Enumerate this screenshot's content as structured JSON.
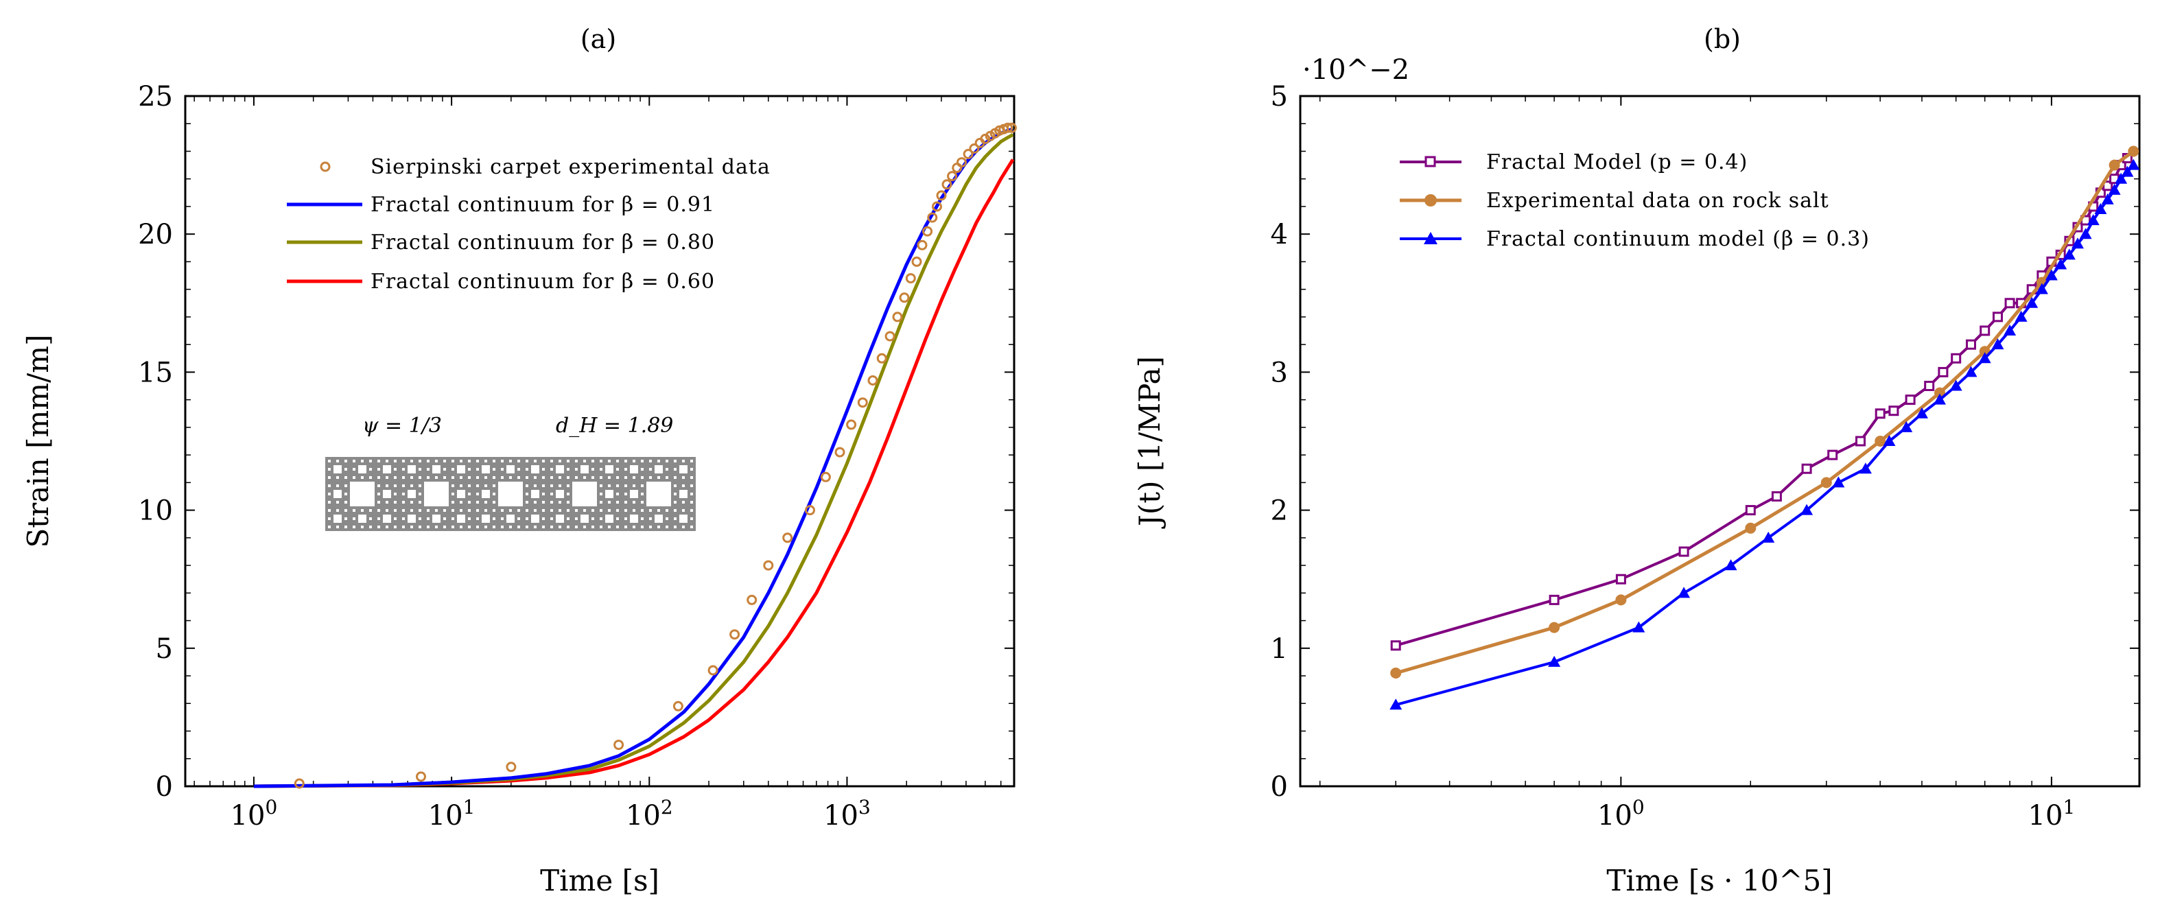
{
  "chart_data": [
    {
      "type": "line",
      "title": "(a)",
      "xlabel": "Time  [s]",
      "ylabel": "Strain  [mm/m]",
      "xscale": "log",
      "xlim": [
        0.45,
        7000
      ],
      "ylim": [
        0,
        25
      ],
      "grid": false,
      "legend_position": "top-left",
      "x_ticks": [
        {
          "value": 1,
          "label_base": "10",
          "label_exp": "0"
        },
        {
          "value": 10,
          "label_base": "10",
          "label_exp": "1"
        },
        {
          "value": 100,
          "label_base": "10",
          "label_exp": "2"
        },
        {
          "value": 1000,
          "label_base": "10",
          "label_exp": "3"
        }
      ],
      "y_ticks": [
        {
          "value": 0,
          "label": "0"
        },
        {
          "value": 5,
          "label": "5"
        },
        {
          "value": 10,
          "label": "10"
        },
        {
          "value": 15,
          "label": "15"
        },
        {
          "value": 20,
          "label": "20"
        },
        {
          "value": 25,
          "label": "25"
        }
      ],
      "inset": {
        "psi_label": "ψ = 1/3",
        "dh_label": "d_H = 1.89"
      },
      "series": [
        {
          "name": "Sierpinski carpet experimental data",
          "style": "scatter-open-circle",
          "color": "#c8823a",
          "x": [
            1.7,
            7,
            20,
            70,
            140,
            210,
            270,
            330,
            400,
            500,
            650,
            780,
            920,
            1050,
            1200,
            1350,
            1500,
            1650,
            1800,
            1950,
            2100,
            2250,
            2400,
            2550,
            2700,
            2850,
            3000,
            3200,
            3400,
            3600,
            3800,
            4100,
            4400,
            4700,
            5000,
            5300,
            5600,
            5900,
            6200,
            6500,
            6800
          ],
          "y": [
            0.1,
            0.35,
            0.7,
            1.5,
            2.9,
            4.2,
            5.5,
            6.75,
            8.0,
            9.0,
            10.0,
            11.2,
            12.1,
            13.1,
            13.9,
            14.7,
            15.5,
            16.3,
            17.0,
            17.7,
            18.4,
            19.0,
            19.6,
            20.1,
            20.6,
            21.0,
            21.4,
            21.8,
            22.1,
            22.4,
            22.6,
            22.9,
            23.1,
            23.3,
            23.45,
            23.55,
            23.65,
            23.75,
            23.8,
            23.85,
            23.85
          ]
        },
        {
          "name": "Fractal continuum for β = 0.91",
          "style": "line",
          "color": "#0000ff",
          "x": [
            1,
            5,
            10,
            20,
            30,
            50,
            70,
            100,
            150,
            200,
            300,
            400,
            500,
            700,
            1000,
            1300,
            1600,
            2000,
            2500,
            3000,
            3500,
            4000,
            4500,
            5000,
            5500,
            6000,
            6500,
            6900
          ],
          "y": [
            0.0,
            0.05,
            0.15,
            0.3,
            0.45,
            0.75,
            1.1,
            1.7,
            2.7,
            3.7,
            5.4,
            7.0,
            8.4,
            10.8,
            13.6,
            15.7,
            17.3,
            18.9,
            20.3,
            21.3,
            22.0,
            22.6,
            23.0,
            23.3,
            23.5,
            23.65,
            23.75,
            23.8
          ]
        },
        {
          "name": "Fractal continuum for β = 0.80",
          "style": "line",
          "color": "#8a8a00",
          "x": [
            1,
            5,
            10,
            20,
            30,
            50,
            70,
            100,
            150,
            200,
            300,
            400,
            500,
            700,
            1000,
            1300,
            1600,
            2000,
            2500,
            3000,
            3500,
            4000,
            4500,
            5000,
            5500,
            6000,
            6500,
            6900
          ],
          "y": [
            0.0,
            0.04,
            0.12,
            0.25,
            0.38,
            0.62,
            0.95,
            1.45,
            2.3,
            3.1,
            4.5,
            5.8,
            7.0,
            9.1,
            11.7,
            13.8,
            15.5,
            17.3,
            18.9,
            20.1,
            21.0,
            21.8,
            22.4,
            22.8,
            23.1,
            23.35,
            23.5,
            23.6
          ]
        },
        {
          "name": "Fractal continuum for β = 0.60",
          "style": "line",
          "color": "#ff0000",
          "x": [
            1,
            5,
            10,
            20,
            30,
            50,
            70,
            100,
            150,
            200,
            300,
            400,
            500,
            700,
            1000,
            1300,
            1600,
            2000,
            2500,
            3000,
            3500,
            4000,
            4500,
            5000,
            5500,
            6000,
            6500,
            6900
          ],
          "y": [
            0.0,
            0.03,
            0.1,
            0.2,
            0.3,
            0.5,
            0.75,
            1.15,
            1.8,
            2.4,
            3.5,
            4.5,
            5.4,
            7.0,
            9.2,
            11.0,
            12.6,
            14.4,
            16.2,
            17.6,
            18.7,
            19.6,
            20.4,
            21.0,
            21.5,
            22.0,
            22.4,
            22.7
          ]
        }
      ]
    },
    {
      "type": "line",
      "title": "(b)",
      "xlabel": "Time  [s · 10^5]",
      "ylabel": "J(t)    [1/MPa]",
      "xscale": "log",
      "xlim": [
        0.18,
        16
      ],
      "ylim": [
        0,
        5
      ],
      "y_multiplier": "·10^−2",
      "grid": false,
      "legend_position": "top-left",
      "x_ticks": [
        {
          "value": 1,
          "label_base": "10",
          "label_exp": "0"
        },
        {
          "value": 10,
          "label_base": "10",
          "label_exp": "1"
        }
      ],
      "y_ticks": [
        {
          "value": 0,
          "label": "0"
        },
        {
          "value": 1,
          "label": "1"
        },
        {
          "value": 2,
          "label": "2"
        },
        {
          "value": 3,
          "label": "3"
        },
        {
          "value": 4,
          "label": "4"
        },
        {
          "value": 5,
          "label": "5"
        }
      ],
      "series": [
        {
          "name": "Fractal Model (p = 0.4)",
          "marker": "square",
          "color": "#800080",
          "x": [
            0.3,
            0.7,
            1.0,
            1.4,
            2.0,
            2.3,
            2.7,
            3.1,
            3.6,
            4.0,
            4.3,
            4.7,
            5.2,
            5.6,
            6.0,
            6.5,
            7.0,
            7.5,
            8.0,
            8.5,
            9.0,
            9.5,
            10.0,
            10.5,
            11.0,
            11.5,
            12.0,
            12.5,
            13.0,
            13.5,
            14.0,
            14.5,
            15.0
          ],
          "y": [
            1.02,
            1.35,
            1.5,
            1.7,
            2.0,
            2.1,
            2.3,
            2.4,
            2.5,
            2.7,
            2.72,
            2.8,
            2.9,
            3.0,
            3.1,
            3.2,
            3.3,
            3.4,
            3.5,
            3.5,
            3.6,
            3.7,
            3.8,
            3.85,
            3.95,
            4.05,
            4.1,
            4.2,
            4.3,
            4.35,
            4.4,
            4.5,
            4.55
          ]
        },
        {
          "name": "Experimental data on rock salt",
          "marker": "circle",
          "color": "#c8823a",
          "x": [
            0.3,
            0.7,
            1.0,
            2.0,
            3.0,
            4.0,
            5.5,
            7.0,
            9.5,
            14.0,
            15.5
          ],
          "y": [
            0.82,
            1.15,
            1.35,
            1.87,
            2.2,
            2.5,
            2.85,
            3.15,
            3.65,
            4.5,
            4.6
          ]
        },
        {
          "name": "Fractal continuum model (β = 0.3)",
          "marker": "triangle",
          "color": "#0000ff",
          "x": [
            0.3,
            0.7,
            1.1,
            1.4,
            1.8,
            2.2,
            2.7,
            3.2,
            3.7,
            4.2,
            4.6,
            5.0,
            5.5,
            6.0,
            6.5,
            7.0,
            7.5,
            8.0,
            8.5,
            9.0,
            9.5,
            10.0,
            10.5,
            11.0,
            11.5,
            12.0,
            12.5,
            13.0,
            13.5,
            14.0,
            14.5,
            15.0,
            15.5
          ],
          "y": [
            0.59,
            0.9,
            1.15,
            1.4,
            1.6,
            1.8,
            2.0,
            2.2,
            2.3,
            2.5,
            2.6,
            2.7,
            2.8,
            2.9,
            3.0,
            3.1,
            3.2,
            3.3,
            3.4,
            3.5,
            3.6,
            3.7,
            3.78,
            3.85,
            3.93,
            4.0,
            4.1,
            4.18,
            4.25,
            4.32,
            4.4,
            4.45,
            4.5
          ]
        }
      ]
    }
  ]
}
